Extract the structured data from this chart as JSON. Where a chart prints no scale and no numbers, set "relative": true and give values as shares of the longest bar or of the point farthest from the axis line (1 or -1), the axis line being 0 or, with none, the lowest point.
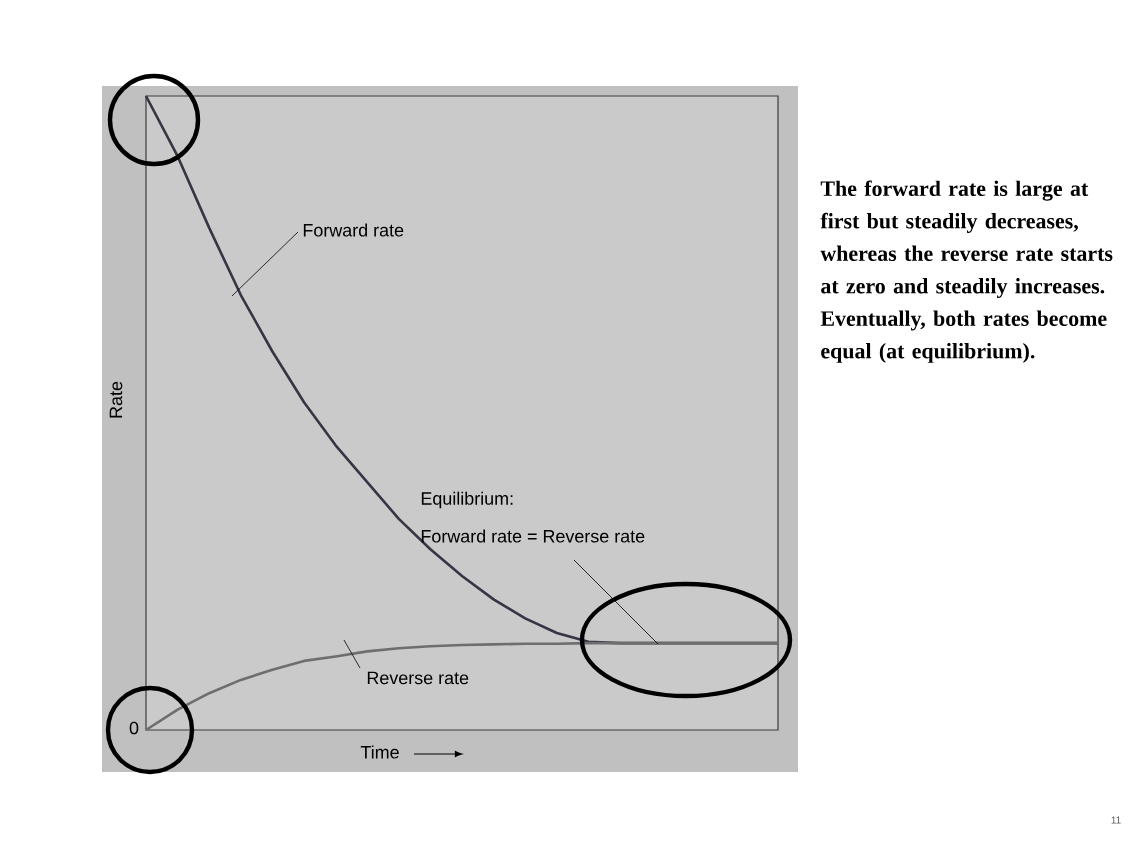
{
  "chart_data": {
    "type": "line",
    "relative": true,
    "xlabel": "Time",
    "ylabel": "Rate",
    "categories": [
      null,
      null,
      null,
      null,
      null,
      null,
      null,
      null,
      null,
      null,
      null,
      null,
      null,
      null,
      null,
      null,
      null,
      null,
      null,
      null,
      null
    ],
    "series": [
      {
        "color": "#353545",
        "values": [
          1.0,
          0.905,
          0.792,
          0.686,
          0.597,
          0.517,
          0.449,
          0.391,
          0.333,
          0.285,
          0.243,
          0.206,
          0.176,
          0.153,
          0.139,
          0.137,
          0.137,
          0.137,
          0.137,
          0.137,
          0.137
        ]
      },
      {
        "color": "#6e6e6e",
        "values": [
          0.0,
          0.032,
          0.058,
          0.079,
          0.095,
          0.109,
          0.116,
          0.124,
          0.129,
          0.132,
          0.134,
          0.135,
          0.136,
          0.136,
          0.137,
          0.137,
          0.137,
          0.137,
          0.137,
          0.137,
          0.137
        ]
      }
    ],
    "annotations": [
      "Forward rate",
      "Reverse rate",
      "Equilibrium:",
      "Forward rate = Reverse rate",
      "0",
      "**The forward rate is large at first but steadily decreases, whereas the reverse rate starts at zero and steadily increases. Eventually, both rates become equal (at equilibrium).**",
      "11"
    ]
  }
}
